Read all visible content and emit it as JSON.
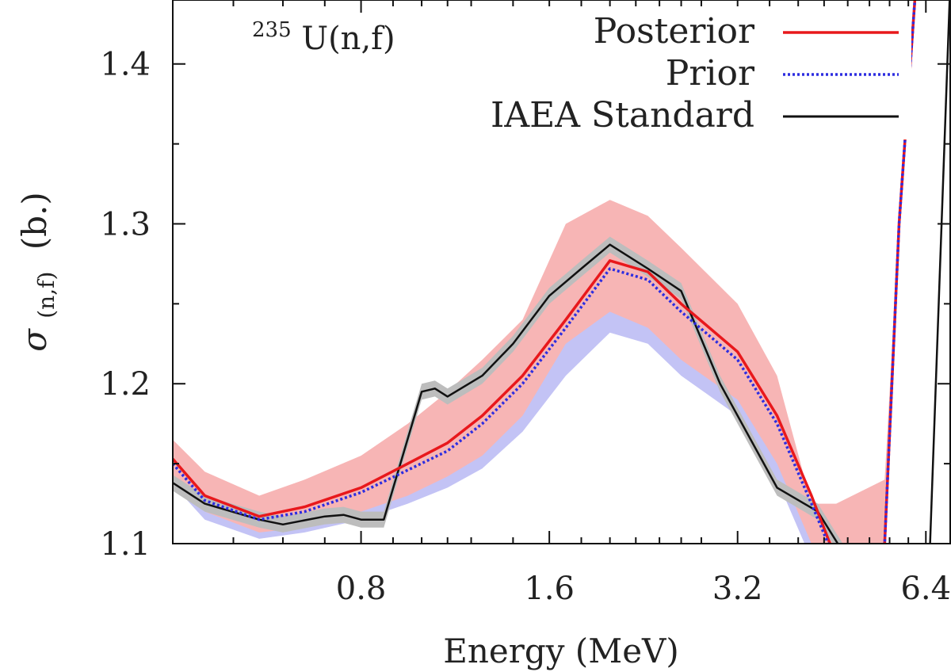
{
  "chart_data": {
    "type": "line",
    "annotation": {
      "prefix": "235",
      "text": "U(n,f)"
    },
    "xlabel": "Energy (MeV)",
    "ylabel": {
      "symbol": "σ",
      "subscript": "(n,f)",
      "unit": "(b.)"
    },
    "xscale": "log2",
    "xlim": [
      0.4,
      7.0
    ],
    "ylim": [
      1.1,
      1.44
    ],
    "x_ticks": [
      {
        "value": 0.8,
        "label": "0.8"
      },
      {
        "value": 1.6,
        "label": "1.6"
      },
      {
        "value": 3.2,
        "label": "3.2"
      },
      {
        "value": 6.4,
        "label": "6.4"
      }
    ],
    "x_minor_ticks": [
      0.5,
      0.6,
      0.7,
      0.9,
      1.0,
      1.1,
      1.2,
      1.4,
      1.8,
      2.0,
      2.2,
      2.4,
      2.6,
      2.8,
      3.6,
      4.0,
      4.4,
      4.8,
      5.2,
      5.6,
      6.0
    ],
    "y_ticks": [
      {
        "value": 1.1,
        "label": "1.1"
      },
      {
        "value": 1.2,
        "label": "1.2"
      },
      {
        "value": 1.3,
        "label": "1.3"
      },
      {
        "value": 1.4,
        "label": "1.4"
      }
    ],
    "y_minor_ticks": [
      1.15,
      1.25,
      1.35
    ],
    "legend_position": "top-right",
    "series": [
      {
        "name": "Posterior",
        "color": "#e8181c",
        "dash": "solid",
        "band_color": "#f7b5b5",
        "x": [
          0.4,
          0.45,
          0.55,
          0.65,
          0.8,
          0.95,
          1.1,
          1.25,
          1.45,
          1.7,
          2.0,
          2.3,
          2.6,
          3.2,
          3.7,
          4.2,
          4.6,
          5.5,
          5.8,
          6.3
        ],
        "y": [
          1.153,
          1.13,
          1.117,
          1.123,
          1.135,
          1.15,
          1.163,
          1.18,
          1.205,
          1.24,
          1.277,
          1.27,
          1.25,
          1.22,
          1.18,
          1.13,
          1.09,
          1.1,
          1.3,
          1.5
        ],
        "upper": [
          1.165,
          1.145,
          1.13,
          1.14,
          1.155,
          1.175,
          1.195,
          1.215,
          1.24,
          1.3,
          1.315,
          1.305,
          1.285,
          1.25,
          1.205,
          1.125,
          1.125,
          1.14,
          1.3,
          1.5
        ],
        "lower": [
          1.14,
          1.12,
          1.107,
          1.11,
          1.12,
          1.13,
          1.142,
          1.155,
          1.18,
          1.225,
          1.245,
          1.235,
          1.215,
          1.19,
          1.15,
          1.1,
          1.075,
          1.09,
          1.3,
          1.5
        ]
      },
      {
        "name": "Prior",
        "color": "#2d2de0",
        "dash": "dotted",
        "band_color": "#c3c3f5",
        "x": [
          0.4,
          0.45,
          0.55,
          0.65,
          0.8,
          0.95,
          1.1,
          1.25,
          1.45,
          1.7,
          2.0,
          2.3,
          2.6,
          3.2,
          3.7,
          4.2,
          4.6,
          5.5,
          5.8,
          6.3
        ],
        "y": [
          1.15,
          1.127,
          1.115,
          1.12,
          1.132,
          1.146,
          1.158,
          1.175,
          1.2,
          1.235,
          1.272,
          1.265,
          1.245,
          1.215,
          1.175,
          1.125,
          1.088,
          1.1,
          1.3,
          1.5
        ],
        "upper": [
          1.15,
          1.127,
          1.115,
          1.12,
          1.132,
          1.146,
          1.158,
          1.175,
          1.2,
          1.235,
          1.272,
          1.265,
          1.245,
          1.215,
          1.175,
          1.125,
          1.088,
          1.1,
          1.3,
          1.5
        ],
        "lower": [
          1.137,
          1.115,
          1.103,
          1.107,
          1.115,
          1.125,
          1.135,
          1.147,
          1.17,
          1.205,
          1.232,
          1.225,
          1.205,
          1.18,
          1.14,
          1.09,
          1.07,
          1.09,
          1.3,
          1.5
        ]
      },
      {
        "name": "IAEA Standard",
        "color": "#111111",
        "dash": "solid",
        "band_color": "#bdbdbd",
        "x": [
          0.4,
          0.45,
          0.55,
          0.6,
          0.7,
          0.75,
          0.8,
          0.87,
          1.0,
          1.05,
          1.1,
          1.25,
          1.4,
          1.6,
          1.8,
          2.0,
          2.3,
          2.6,
          3.0,
          3.7,
          4.3,
          4.8
        ],
        "y": [
          1.138,
          1.125,
          1.115,
          1.112,
          1.117,
          1.118,
          1.115,
          1.115,
          1.195,
          1.197,
          1.192,
          1.205,
          1.225,
          1.255,
          1.272,
          1.287,
          1.272,
          1.258,
          1.2,
          1.135,
          1.12,
          1.09
        ],
        "upper": [
          1.143,
          1.13,
          1.12,
          1.117,
          1.122,
          1.123,
          1.12,
          1.12,
          1.2,
          1.202,
          1.197,
          1.21,
          1.23,
          1.26,
          1.277,
          1.292,
          1.277,
          1.263,
          1.205,
          1.14,
          1.125,
          1.095
        ],
        "lower": [
          1.133,
          1.12,
          1.11,
          1.107,
          1.112,
          1.113,
          1.11,
          1.11,
          1.19,
          1.192,
          1.187,
          1.2,
          1.22,
          1.25,
          1.267,
          1.282,
          1.267,
          1.253,
          1.195,
          1.13,
          1.115,
          1.085
        ],
        "extra_line": {
          "x": [
            6.5,
            7.0
          ],
          "y": [
            1.1,
            1.45
          ]
        }
      }
    ]
  }
}
